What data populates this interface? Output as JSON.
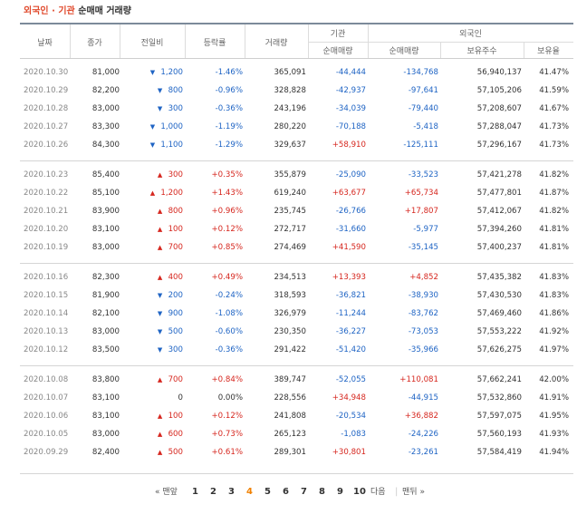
{
  "title": {
    "part1": "외국인 · 기관",
    "part2": "순매매 거래량"
  },
  "headers": {
    "date": "날짜",
    "close": "종가",
    "change": "전일비",
    "rate": "등락률",
    "volume": "거래량",
    "institution_group": "기관",
    "institution_net": "순매매량",
    "foreign_group": "외국인",
    "foreign_net": "순매매량",
    "foreign_shares": "보유주수",
    "foreign_ratio": "보유율"
  },
  "colors": {
    "up": "#d6271f",
    "down": "#1f64c4",
    "accent": "#e0492c",
    "current_page": "#f08000"
  },
  "groups": [
    {
      "rows": [
        {
          "date": "2020.10.30",
          "close": "81,000",
          "dir": "down",
          "change": "1,200",
          "rate": "-1.46%",
          "volume": "365,091",
          "inst": "-44,444",
          "forn": "-134,768",
          "shares": "56,940,137",
          "ratio": "41.47%"
        },
        {
          "date": "2020.10.29",
          "close": "82,200",
          "dir": "down",
          "change": "800",
          "rate": "-0.96%",
          "volume": "328,828",
          "inst": "-42,937",
          "forn": "-97,641",
          "shares": "57,105,206",
          "ratio": "41.59%"
        },
        {
          "date": "2020.10.28",
          "close": "83,000",
          "dir": "down",
          "change": "300",
          "rate": "-0.36%",
          "volume": "243,196",
          "inst": "-34,039",
          "forn": "-79,440",
          "shares": "57,208,607",
          "ratio": "41.67%"
        },
        {
          "date": "2020.10.27",
          "close": "83,300",
          "dir": "down",
          "change": "1,000",
          "rate": "-1.19%",
          "volume": "280,220",
          "inst": "-70,188",
          "forn": "-5,418",
          "shares": "57,288,047",
          "ratio": "41.73%"
        },
        {
          "date": "2020.10.26",
          "close": "84,300",
          "dir": "down",
          "change": "1,100",
          "rate": "-1.29%",
          "volume": "329,637",
          "inst": "+58,910",
          "forn": "-125,111",
          "shares": "57,296,167",
          "ratio": "41.73%"
        }
      ]
    },
    {
      "rows": [
        {
          "date": "2020.10.23",
          "close": "85,400",
          "dir": "up",
          "change": "300",
          "rate": "+0.35%",
          "volume": "355,879",
          "inst": "-25,090",
          "forn": "-33,523",
          "shares": "57,421,278",
          "ratio": "41.82%"
        },
        {
          "date": "2020.10.22",
          "close": "85,100",
          "dir": "up",
          "change": "1,200",
          "rate": "+1.43%",
          "volume": "619,240",
          "inst": "+63,677",
          "forn": "+65,734",
          "shares": "57,477,801",
          "ratio": "41.87%"
        },
        {
          "date": "2020.10.21",
          "close": "83,900",
          "dir": "up",
          "change": "800",
          "rate": "+0.96%",
          "volume": "235,745",
          "inst": "-26,766",
          "forn": "+17,807",
          "shares": "57,412,067",
          "ratio": "41.82%"
        },
        {
          "date": "2020.10.20",
          "close": "83,100",
          "dir": "up",
          "change": "100",
          "rate": "+0.12%",
          "volume": "272,717",
          "inst": "-31,660",
          "forn": "-5,977",
          "shares": "57,394,260",
          "ratio": "41.81%"
        },
        {
          "date": "2020.10.19",
          "close": "83,000",
          "dir": "up",
          "change": "700",
          "rate": "+0.85%",
          "volume": "274,469",
          "inst": "+41,590",
          "forn": "-35,145",
          "shares": "57,400,237",
          "ratio": "41.81%"
        }
      ]
    },
    {
      "rows": [
        {
          "date": "2020.10.16",
          "close": "82,300",
          "dir": "up",
          "change": "400",
          "rate": "+0.49%",
          "volume": "234,513",
          "inst": "+13,393",
          "forn": "+4,852",
          "shares": "57,435,382",
          "ratio": "41.83%"
        },
        {
          "date": "2020.10.15",
          "close": "81,900",
          "dir": "down",
          "change": "200",
          "rate": "-0.24%",
          "volume": "318,593",
          "inst": "-36,821",
          "forn": "-38,930",
          "shares": "57,430,530",
          "ratio": "41.83%"
        },
        {
          "date": "2020.10.14",
          "close": "82,100",
          "dir": "down",
          "change": "900",
          "rate": "-1.08%",
          "volume": "326,979",
          "inst": "-11,244",
          "forn": "-83,762",
          "shares": "57,469,460",
          "ratio": "41.86%"
        },
        {
          "date": "2020.10.13",
          "close": "83,000",
          "dir": "down",
          "change": "500",
          "rate": "-0.60%",
          "volume": "230,350",
          "inst": "-36,227",
          "forn": "-73,053",
          "shares": "57,553,222",
          "ratio": "41.92%"
        },
        {
          "date": "2020.10.12",
          "close": "83,500",
          "dir": "down",
          "change": "300",
          "rate": "-0.36%",
          "volume": "291,422",
          "inst": "-51,420",
          "forn": "-35,966",
          "shares": "57,626,275",
          "ratio": "41.97%"
        }
      ]
    },
    {
      "rows": [
        {
          "date": "2020.10.08",
          "close": "83,800",
          "dir": "up",
          "change": "700",
          "rate": "+0.84%",
          "volume": "389,747",
          "inst": "-52,055",
          "forn": "+110,081",
          "shares": "57,662,241",
          "ratio": "42.00%"
        },
        {
          "date": "2020.10.07",
          "close": "83,100",
          "dir": "flat",
          "change": "0",
          "rate": "0.00%",
          "volume": "228,556",
          "inst": "+34,948",
          "forn": "-44,915",
          "shares": "57,532,860",
          "ratio": "41.91%"
        },
        {
          "date": "2020.10.06",
          "close": "83,100",
          "dir": "up",
          "change": "100",
          "rate": "+0.12%",
          "volume": "241,808",
          "inst": "-20,534",
          "forn": "+36,882",
          "shares": "57,597,075",
          "ratio": "41.95%"
        },
        {
          "date": "2020.10.05",
          "close": "83,000",
          "dir": "up",
          "change": "600",
          "rate": "+0.73%",
          "volume": "265,123",
          "inst": "-1,083",
          "forn": "-24,226",
          "shares": "57,560,193",
          "ratio": "41.93%"
        },
        {
          "date": "2020.09.29",
          "close": "82,400",
          "dir": "up",
          "change": "500",
          "rate": "+0.61%",
          "volume": "289,301",
          "inst": "+30,801",
          "forn": "-23,261",
          "shares": "57,584,419",
          "ratio": "41.94%"
        }
      ]
    }
  ],
  "pagination": {
    "first": "맨앞",
    "prev_arrow": "«",
    "pages": [
      "1",
      "2",
      "3",
      "4",
      "5",
      "6",
      "7",
      "8",
      "9",
      "10"
    ],
    "current": "4",
    "next": "다음",
    "last": "맨뒤",
    "next_arrow": "»"
  }
}
